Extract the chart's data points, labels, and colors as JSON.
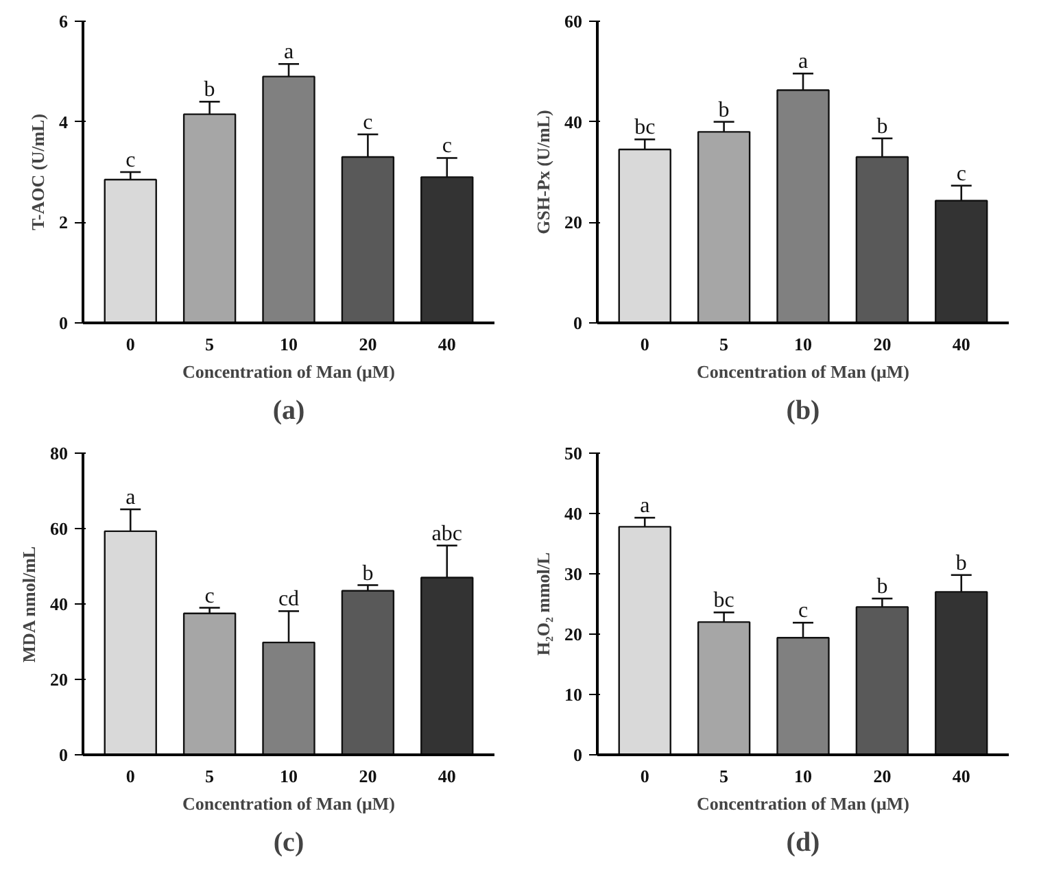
{
  "chart_data": [
    {
      "type": "bar",
      "title": "(a)",
      "xlabel": "Concentration of Man (μM)",
      "ylabel": "T-AOC (U/mL)",
      "categories": [
        "0",
        "5",
        "10",
        "20",
        "40"
      ],
      "values": [
        2.85,
        4.15,
        4.9,
        3.3,
        2.9
      ],
      "errors": [
        0.15,
        0.25,
        0.25,
        0.45,
        0.38
      ],
      "colors": [
        "#d9d9d9",
        "#a6a6a6",
        "#808080",
        "#595959",
        "#333333"
      ],
      "ylim": [
        0,
        6
      ],
      "yticks": [
        0,
        2,
        4,
        6
      ],
      "grid": false,
      "annotations": [
        {
          "text": "c",
          "x": "0",
          "y": 3.0
        },
        {
          "text": "b",
          "x": "5",
          "y": 4.4
        },
        {
          "text": "a",
          "x": "10",
          "y": 5.15
        },
        {
          "text": "c",
          "x": "20",
          "y": 3.75
        },
        {
          "text": "c",
          "x": "40",
          "y": 3.28
        }
      ]
    },
    {
      "type": "bar",
      "title": "(b)",
      "xlabel": "Concentration of Man (μM)",
      "ylabel": "GSH-Px (U/mL)",
      "categories": [
        "0",
        "5",
        "10",
        "20",
        "40"
      ],
      "values": [
        34.5,
        38,
        46.3,
        33,
        24.3
      ],
      "errors": [
        2,
        2,
        3.3,
        3.7,
        3
      ],
      "colors": [
        "#d9d9d9",
        "#a6a6a6",
        "#808080",
        "#595959",
        "#333333"
      ],
      "ylim": [
        0,
        60
      ],
      "yticks": [
        0,
        20,
        40,
        60
      ],
      "grid": false,
      "annotations": [
        {
          "text": "bc",
          "x": "0",
          "y": 36.5
        },
        {
          "text": "b",
          "x": "5",
          "y": 40
        },
        {
          "text": "a",
          "x": "10",
          "y": 49.6
        },
        {
          "text": "b",
          "x": "20",
          "y": 36.7
        },
        {
          "text": "c",
          "x": "40",
          "y": 27.3
        }
      ]
    },
    {
      "type": "bar",
      "title": "(c)",
      "xlabel": "Concentration of Man (μM)",
      "ylabel": "MDA nmol/mL",
      "categories": [
        "0",
        "5",
        "10",
        "20",
        "40"
      ],
      "values": [
        59.3,
        37.5,
        29.8,
        43.5,
        47
      ],
      "errors": [
        5.8,
        1.5,
        8.3,
        1.5,
        8.5
      ],
      "colors": [
        "#d9d9d9",
        "#a6a6a6",
        "#808080",
        "#595959",
        "#333333"
      ],
      "ylim": [
        0,
        80
      ],
      "yticks": [
        0,
        20,
        40,
        60,
        80
      ],
      "grid": false,
      "annotations": [
        {
          "text": "a",
          "x": "0",
          "y": 65.1
        },
        {
          "text": "c",
          "x": "5",
          "y": 39
        },
        {
          "text": "cd",
          "x": "10",
          "y": 38.1
        },
        {
          "text": "b",
          "x": "20",
          "y": 45
        },
        {
          "text": "abc",
          "x": "40",
          "y": 55.5
        }
      ]
    },
    {
      "type": "bar",
      "title": "(d)",
      "xlabel": "Concentration of Man (μM)",
      "ylabel": "H₂O₂ mmol/L",
      "categories": [
        "0",
        "5",
        "10",
        "20",
        "40"
      ],
      "values": [
        37.8,
        22,
        19.4,
        24.5,
        27
      ],
      "errors": [
        1.5,
        1.6,
        2.5,
        1.4,
        2.8
      ],
      "colors": [
        "#d9d9d9",
        "#a6a6a6",
        "#808080",
        "#595959",
        "#333333"
      ],
      "ylim": [
        0,
        50
      ],
      "yticks": [
        0,
        10,
        20,
        30,
        40,
        50
      ],
      "grid": false,
      "annotations": [
        {
          "text": "a",
          "x": "0",
          "y": 39.3
        },
        {
          "text": "bc",
          "x": "5",
          "y": 23.6
        },
        {
          "text": "c",
          "x": "10",
          "y": 21.9
        },
        {
          "text": "b",
          "x": "20",
          "y": 25.9
        },
        {
          "text": "b",
          "x": "40",
          "y": 29.8
        }
      ]
    }
  ]
}
